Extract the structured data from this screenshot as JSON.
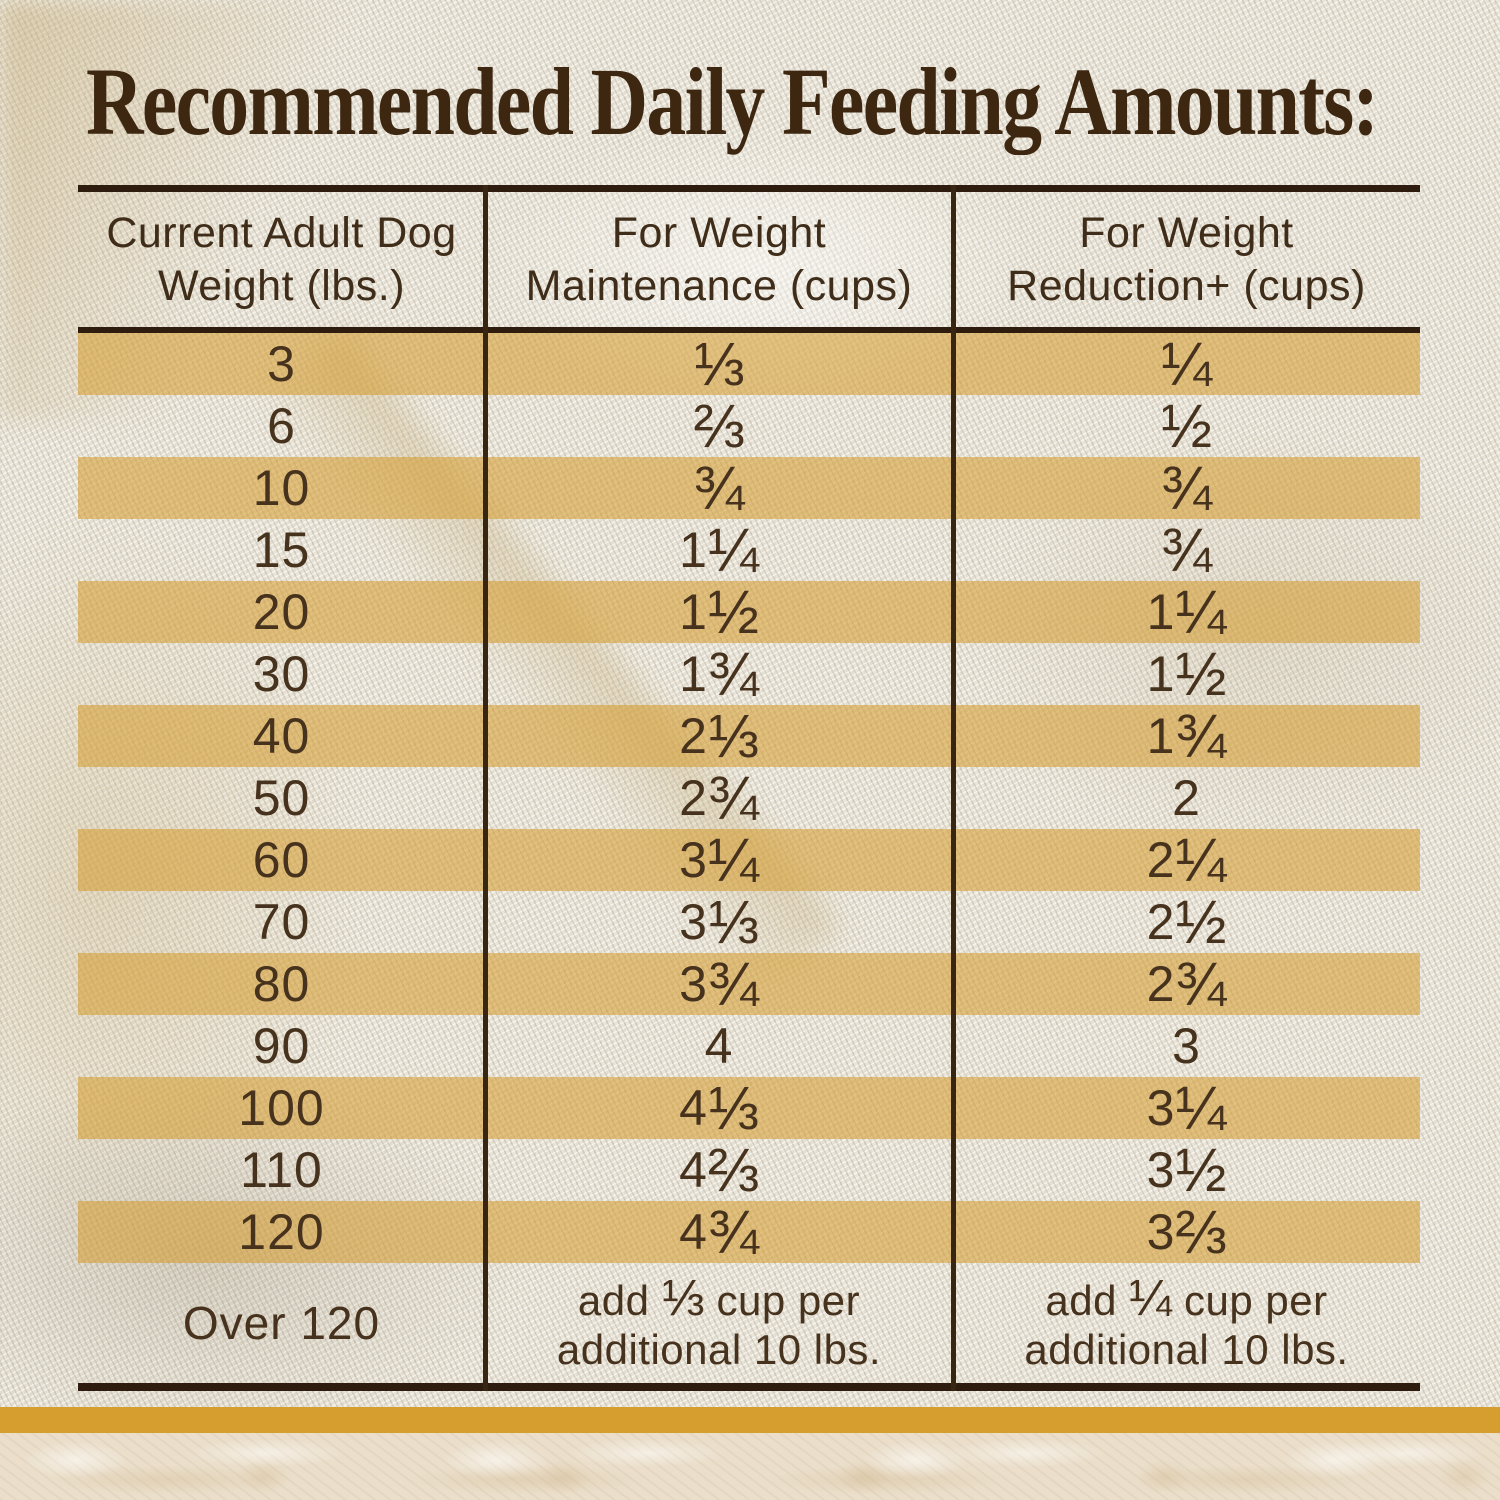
{
  "title": "Recommended Daily Feeding Amounts:",
  "header_lines": [
    [
      "Current Adult Dog",
      "Weight (lbs.)"
    ],
    [
      "For Weight",
      "Maintenance (cups)"
    ],
    [
      "For Weight",
      "Reduction+ (cups)"
    ]
  ],
  "chart_data": {
    "type": "table",
    "title": "Recommended Daily Feeding Amounts:",
    "columns": [
      "Current Adult Dog Weight (lbs.)",
      "For Weight Maintenance (cups)",
      "For Weight Reduction+ (cups)"
    ],
    "rows": [
      [
        "3",
        "⅓",
        "¼"
      ],
      [
        "6",
        "⅔",
        "½"
      ],
      [
        "10",
        "¾",
        "¾"
      ],
      [
        "15",
        "1 ¼",
        "¾"
      ],
      [
        "20",
        "1 ½",
        "1 ¼"
      ],
      [
        "30",
        "1 ¾",
        "1 ½"
      ],
      [
        "40",
        "2 ⅓",
        "1 ¾"
      ],
      [
        "50",
        "2 ¾",
        "2"
      ],
      [
        "60",
        "3 ¼",
        "2 ¼"
      ],
      [
        "70",
        "3 ⅓",
        "2 ½"
      ],
      [
        "80",
        "3 ¾",
        "2 ¾"
      ],
      [
        "90",
        "4",
        "3"
      ],
      [
        "100",
        "4 ⅓",
        "3 ¼"
      ],
      [
        "110",
        "4 ⅔",
        "3 ½"
      ],
      [
        "120",
        "4 ¾",
        "3 ⅔"
      ],
      [
        "Over 120",
        "add ⅓ cup per additional 10 lbs.",
        "add ¼ cup per additional 10 lbs."
      ]
    ],
    "row_highlight": "alternating gold stripes starting at first data row (3, 10, 20, 40, 60, 80, 100, 120 highlighted)"
  },
  "colors": {
    "title_brown": "#3E2711",
    "text_brown": "#46321D",
    "rule_brown": "#2E1D0E",
    "stripe_gold": "#DFBB6E",
    "accent_band_gold": "#D69D2F",
    "fabric_beige": "#EAE5D8",
    "marble_beige": "#EBDFCB"
  }
}
